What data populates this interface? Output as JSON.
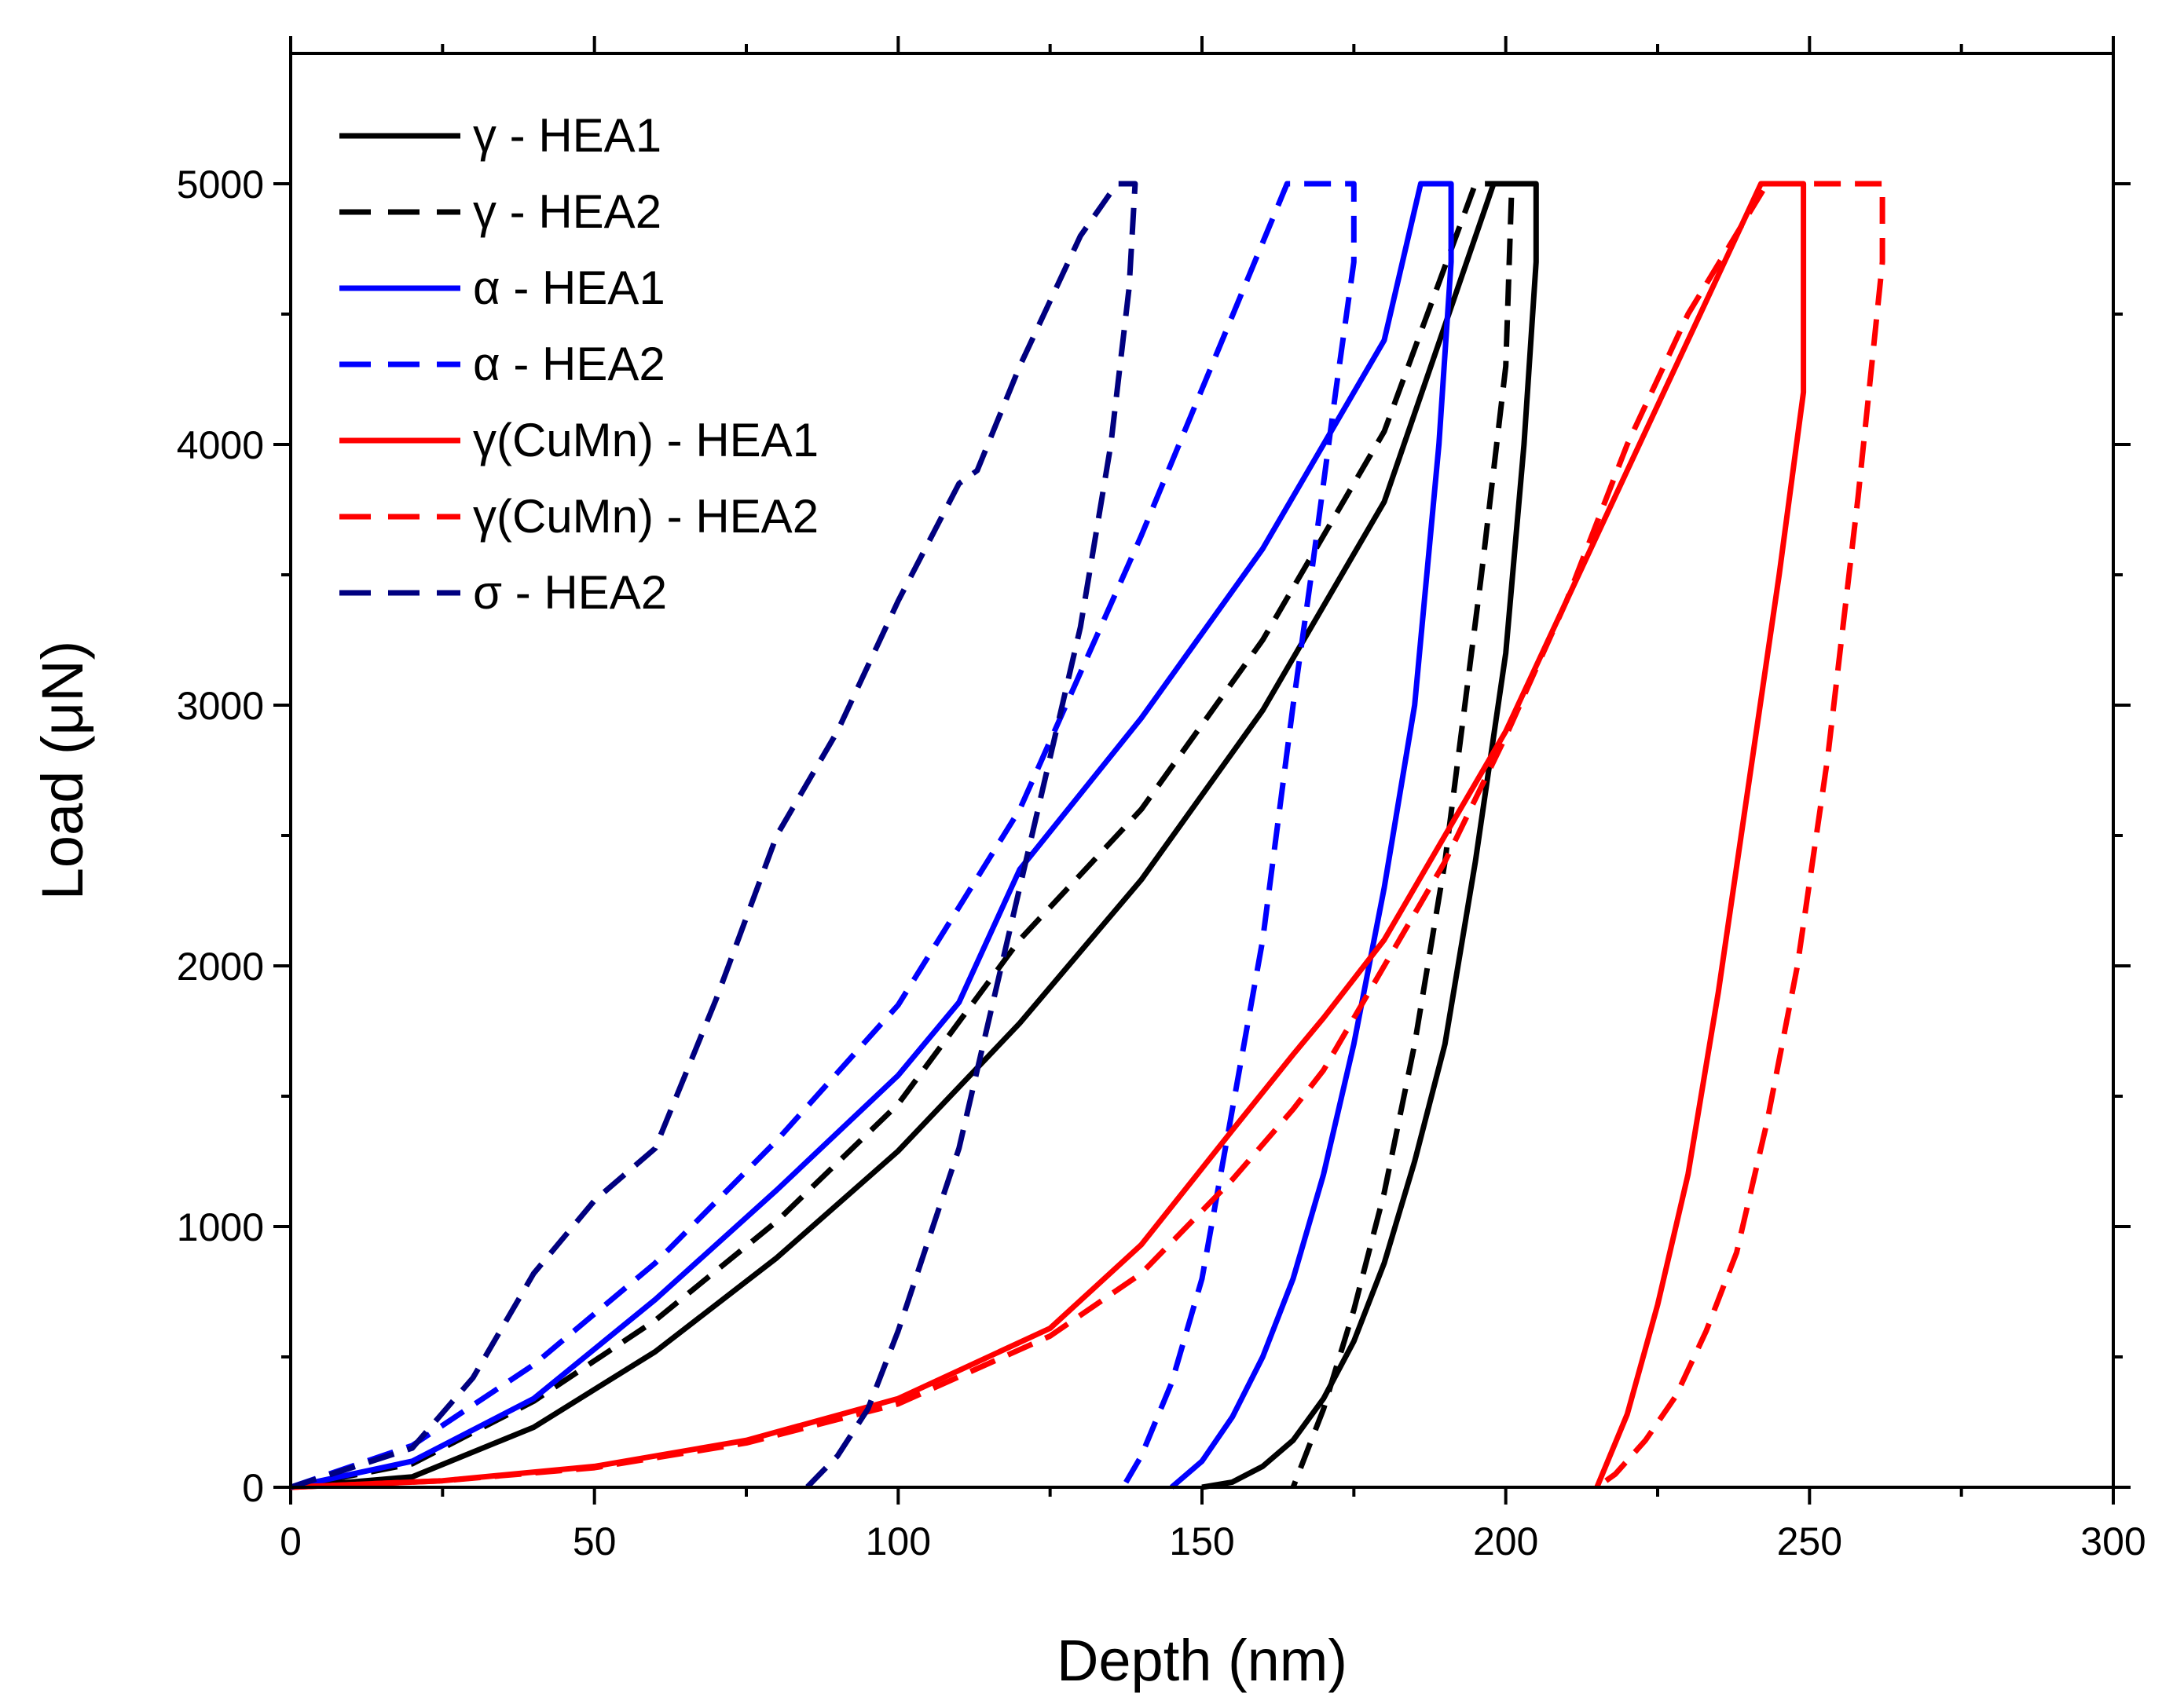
{
  "chart_data": {
    "type": "line",
    "title": "",
    "xlabel": "Depth (nm)",
    "ylabel": "Load (μN)",
    "xlim": [
      0,
      300
    ],
    "ylim": [
      0,
      5500
    ],
    "x_ticks": [
      0,
      50,
      100,
      150,
      200,
      250,
      300
    ],
    "y_ticks": [
      0,
      1000,
      2000,
      3000,
      4000,
      5000
    ],
    "grid": false,
    "legend_position": "top-left",
    "series": [
      {
        "name": "γ - HEA1",
        "color": "#000000",
        "dash": "solid",
        "x": [
          0,
          20,
          40,
          60,
          80,
          100,
          120,
          140,
          160,
          180,
          198,
          205,
          205,
          203,
          200,
          195,
          190,
          185,
          180,
          175,
          170,
          165,
          160,
          155,
          150
        ],
        "y": [
          0,
          40,
          230,
          520,
          880,
          1290,
          1780,
          2330,
          2980,
          3780,
          5000,
          5000,
          4700,
          4000,
          3200,
          2400,
          1700,
          1250,
          860,
          560,
          340,
          180,
          80,
          20,
          0
        ]
      },
      {
        "name": "γ - HEA2",
        "color": "#000000",
        "dash": "dashed",
        "x": [
          0,
          20,
          40,
          60,
          80,
          100,
          120,
          140,
          160,
          180,
          195,
          201,
          200,
          196,
          190,
          185,
          180,
          175,
          170,
          165
        ],
        "y": [
          0,
          90,
          330,
          640,
          1020,
          1470,
          2100,
          2600,
          3250,
          4050,
          5000,
          5000,
          4300,
          3500,
          2400,
          1700,
          1130,
          680,
          300,
          0
        ]
      },
      {
        "name": "α - HEA1",
        "color": "#0000ff",
        "dash": "solid",
        "x": [
          0,
          20,
          40,
          60,
          80,
          100,
          110,
          120,
          140,
          160,
          180,
          186,
          191,
          191,
          189,
          185,
          180,
          175,
          170,
          165,
          160,
          155,
          150,
          145
        ],
        "y": [
          0,
          100,
          340,
          720,
          1140,
          1580,
          1860,
          2370,
          2950,
          3600,
          4400,
          5000,
          5000,
          4700,
          4000,
          3000,
          2300,
          1700,
          1200,
          800,
          500,
          270,
          100,
          0
        ]
      },
      {
        "name": "α - HEA2",
        "color": "#0000ff",
        "dash": "dashed",
        "x": [
          0,
          20,
          40,
          60,
          80,
          100,
          120,
          140,
          164,
          175,
          175,
          172,
          168,
          165,
          160,
          155,
          150,
          145,
          140,
          137
        ],
        "y": [
          0,
          160,
          470,
          860,
          1330,
          1850,
          2600,
          3650,
          5000,
          5000,
          4700,
          4200,
          3500,
          3000,
          2100,
          1450,
          800,
          400,
          120,
          0
        ]
      },
      {
        "name": "γ(CuMn) - HEA1",
        "color": "#ff0000",
        "dash": "solid",
        "x": [
          0,
          25,
          50,
          75,
          100,
          125,
          140,
          155,
          165,
          170,
          180,
          190,
          200,
          210,
          220,
          230,
          242,
          249,
          249,
          245,
          240,
          235,
          230,
          225,
          220,
          215
        ],
        "y": [
          0,
          25,
          80,
          180,
          340,
          610,
          930,
          1370,
          1660,
          1800,
          2100,
          2500,
          2900,
          3400,
          3900,
          4400,
          5000,
          5000,
          4200,
          3500,
          2700,
          1900,
          1200,
          700,
          280,
          0
        ]
      },
      {
        "name": "γ(CuMn) - HEA2",
        "color": "#ff0000",
        "dash": "dashed",
        "x": [
          0,
          25,
          50,
          75,
          100,
          125,
          140,
          155,
          165,
          170,
          180,
          190,
          200,
          210,
          220,
          230,
          243,
          262,
          262,
          258,
          253,
          248,
          243,
          238,
          233,
          228,
          223,
          218,
          215
        ],
        "y": [
          0,
          25,
          75,
          170,
          320,
          580,
          820,
          1180,
          1450,
          1600,
          2000,
          2400,
          2880,
          3400,
          4000,
          4500,
          5000,
          5000,
          4700,
          3800,
          2800,
          2000,
          1400,
          900,
          600,
          350,
          180,
          50,
          0
        ]
      },
      {
        "name": "σ - HEA2",
        "color": "#000080",
        "dash": "dashed",
        "x": [
          0,
          20,
          30,
          40,
          50,
          60,
          70,
          80,
          90,
          100,
          110,
          113,
          120,
          130,
          136,
          139,
          138,
          135,
          130,
          125,
          120,
          115,
          110,
          105,
          100,
          95,
          90,
          85
        ],
        "y": [
          0,
          150,
          420,
          820,
          1100,
          1300,
          1870,
          2500,
          2900,
          3400,
          3850,
          3900,
          4300,
          4800,
          5000,
          5000,
          4600,
          4000,
          3300,
          2800,
          2300,
          1800,
          1300,
          950,
          600,
          300,
          120,
          0
        ]
      }
    ]
  }
}
